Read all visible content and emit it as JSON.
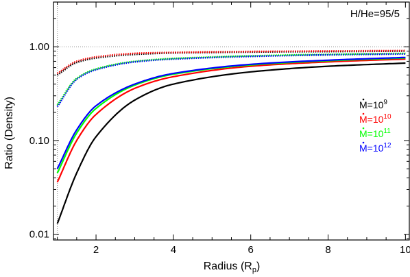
{
  "chart_data": {
    "type": "line",
    "title": "",
    "xlabel": "Radius (R",
    "xlabel_sub": "p",
    "xlabel_close": ")",
    "ylabel": "Ratio (Density)",
    "xlim": [
      0.9,
      10.1
    ],
    "ylim": [
      0.0087,
      3.0
    ],
    "yscale": "log",
    "xticks": [
      2,
      4,
      6,
      8,
      10
    ],
    "xtick_labels": [
      "2",
      "4",
      "6",
      "8",
      "10"
    ],
    "yticks": [
      0.01,
      0.1,
      1.0
    ],
    "ytick_labels": [
      "0.01",
      "0.10",
      "1.00"
    ],
    "reference_lines": {
      "y": 1.0,
      "x": 1.0,
      "style": "dotted"
    },
    "annotation": "H/He=95/5",
    "legend": {
      "placement": "right",
      "entries": [
        {
          "base": "M=10",
          "exp": "9",
          "color": "#000000"
        },
        {
          "base": "M=10",
          "exp": "10",
          "color": "#ff0000"
        },
        {
          "base": "M=10",
          "exp": "11",
          "color": "#00ff00"
        },
        {
          "base": "M=10",
          "exp": "12",
          "color": "#0000ff"
        }
      ]
    },
    "series": [
      {
        "color": "#000000",
        "style": "solid",
        "x": [
          1.0,
          1.5,
          2.0,
          3.0,
          4.0,
          6.0,
          8.0,
          10.0
        ],
        "y": [
          0.013,
          0.045,
          0.11,
          0.27,
          0.4,
          0.54,
          0.62,
          0.67
        ]
      },
      {
        "color": "#ff0000",
        "style": "solid",
        "x": [
          1.0,
          1.5,
          2.0,
          3.0,
          4.0,
          6.0,
          8.0,
          10.0
        ],
        "y": [
          0.036,
          0.1,
          0.19,
          0.36,
          0.48,
          0.62,
          0.69,
          0.74
        ]
      },
      {
        "color": "#00ff00",
        "style": "solid",
        "x": [
          1.0,
          1.5,
          2.0,
          3.0,
          4.0,
          6.0,
          8.0,
          10.0
        ],
        "y": [
          0.045,
          0.12,
          0.22,
          0.39,
          0.51,
          0.64,
          0.71,
          0.76
        ]
      },
      {
        "color": "#0000ff",
        "style": "solid",
        "x": [
          1.0,
          1.5,
          2.0,
          3.0,
          4.0,
          6.0,
          8.0,
          10.0
        ],
        "y": [
          0.05,
          0.13,
          0.235,
          0.4,
          0.52,
          0.65,
          0.72,
          0.77
        ]
      },
      {
        "color": "#000000",
        "style": "dotted",
        "x": [
          1.0,
          1.5,
          2.0,
          3.0,
          4.0,
          6.0,
          8.0,
          10.0
        ],
        "y": [
          0.5,
          0.68,
          0.76,
          0.83,
          0.86,
          0.88,
          0.89,
          0.9
        ]
      },
      {
        "color": "#ff0000",
        "style": "dotted",
        "x": [
          1.0,
          1.5,
          2.0,
          3.0,
          4.0,
          6.0,
          8.0,
          10.0
        ],
        "y": [
          0.52,
          0.7,
          0.78,
          0.85,
          0.87,
          0.89,
          0.9,
          0.91
        ]
      },
      {
        "color": "#00ff00",
        "style": "dotted",
        "x": [
          1.0,
          1.5,
          2.0,
          3.0,
          4.0,
          6.0,
          8.0,
          10.0
        ],
        "y": [
          0.24,
          0.46,
          0.58,
          0.7,
          0.75,
          0.8,
          0.83,
          0.85
        ]
      },
      {
        "color": "#0000ff",
        "style": "dotted",
        "x": [
          1.0,
          1.5,
          2.0,
          3.0,
          4.0,
          6.0,
          8.0,
          10.0
        ],
        "y": [
          0.23,
          0.45,
          0.57,
          0.69,
          0.74,
          0.79,
          0.82,
          0.84
        ]
      }
    ]
  }
}
